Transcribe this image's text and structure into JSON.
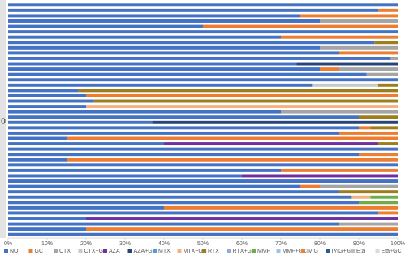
{
  "chart_data": {
    "type": "stacked_bar_horizontal_100",
    "y_label": "0",
    "categories": [
      null,
      null,
      null,
      null,
      null,
      null,
      null,
      null,
      null,
      null,
      null,
      null,
      null,
      null,
      null,
      null,
      null,
      null,
      null,
      null,
      null,
      null,
      null,
      null,
      null,
      null,
      null,
      null,
      null,
      null,
      null,
      null,
      null,
      null,
      null,
      null,
      null,
      null,
      null,
      null,
      null,
      null,
      null,
      null
    ],
    "xlim": [
      0,
      100
    ],
    "xticks": [
      {
        "value": 0,
        "label": "0%"
      },
      {
        "value": 10,
        "label": "10%"
      },
      {
        "value": 20,
        "label": "20%"
      },
      {
        "value": 30,
        "label": "30%"
      },
      {
        "value": 40,
        "label": "40%"
      },
      {
        "value": 50,
        "label": "50%"
      },
      {
        "value": 60,
        "label": "60%"
      },
      {
        "value": 70,
        "label": "70%"
      },
      {
        "value": 80,
        "label": "80%"
      },
      {
        "value": 90,
        "label": "90%"
      },
      {
        "value": 100,
        "label": "100%"
      }
    ],
    "legend": "bottom",
    "series": [
      {
        "name": "NO",
        "color": "#4472c4",
        "values": [
          100,
          95,
          75,
          80,
          50,
          100,
          70,
          94,
          80,
          85,
          98,
          74,
          80,
          92,
          100,
          78,
          18,
          20,
          22,
          20,
          70,
          90,
          37,
          90,
          85,
          15,
          40,
          100,
          90,
          15,
          100,
          70,
          60,
          100,
          75,
          85,
          88,
          90,
          40,
          95,
          20,
          85,
          20,
          100
        ]
      },
      {
        "name": "GC",
        "color": "#ed7d31",
        "values": [
          0,
          5,
          25,
          0,
          50,
          0,
          30,
          0,
          0,
          15,
          0,
          0,
          5,
          0,
          0,
          0,
          0,
          80,
          0,
          0,
          0,
          0,
          0,
          3,
          15,
          85,
          0,
          0,
          10,
          85,
          0,
          30,
          0,
          0,
          5,
          0,
          0,
          0,
          60,
          5,
          0,
          0,
          80,
          0
        ]
      },
      {
        "name": "CTX",
        "color": "#a5a5a5",
        "values": [
          0,
          0,
          0,
          20,
          0,
          0,
          0,
          0,
          20,
          0,
          2,
          0,
          15,
          8,
          0,
          0,
          0,
          0,
          0,
          0,
          30,
          0,
          0,
          0,
          0,
          0,
          0,
          0,
          0,
          0,
          0,
          0,
          0,
          0,
          20,
          0,
          0,
          0,
          0,
          0,
          0,
          15,
          0,
          0
        ]
      },
      {
        "name": "CTX+GC",
        "color": "#c9c9c9",
        "values": [
          0,
          0,
          0,
          0,
          0,
          0,
          0,
          0,
          0,
          0,
          0,
          0,
          0,
          0,
          0,
          17,
          0,
          0,
          0,
          0,
          0,
          0,
          0,
          0,
          0,
          0,
          0,
          0,
          0,
          0,
          0,
          0,
          0,
          0,
          0,
          0,
          0,
          0,
          0,
          0,
          0,
          0,
          0,
          0
        ]
      },
      {
        "name": "AZA",
        "color": "#7030a0",
        "values": [
          0,
          0,
          0,
          0,
          0,
          0,
          0,
          0,
          0,
          0,
          0,
          0,
          0,
          0,
          0,
          0,
          0,
          0,
          0,
          0,
          0,
          0,
          0,
          0,
          0,
          0,
          55,
          0,
          0,
          0,
          0,
          0,
          40,
          0,
          0,
          0,
          0,
          0,
          0,
          0,
          80,
          0,
          0,
          0
        ]
      },
      {
        "name": "AZA+GC",
        "color": "#264478",
        "values": [
          0,
          0,
          0,
          0,
          0,
          0,
          0,
          0,
          0,
          0,
          0,
          26,
          0,
          0,
          0,
          0,
          0,
          0,
          0,
          0,
          0,
          0,
          63,
          0,
          0,
          0,
          0,
          0,
          0,
          0,
          0,
          0,
          0,
          0,
          0,
          0,
          0,
          0,
          0,
          0,
          0,
          0,
          0,
          0
        ]
      },
      {
        "name": "MTX",
        "color": "#5b9bd5",
        "values": [
          0,
          0,
          0,
          0,
          0,
          0,
          0,
          0,
          0,
          0,
          0,
          0,
          0,
          0,
          0,
          0,
          0,
          0,
          0,
          0,
          0,
          0,
          0,
          0,
          0,
          0,
          0,
          0,
          0,
          0,
          0,
          0,
          0,
          0,
          0,
          0,
          0,
          0,
          0,
          0,
          0,
          0,
          0,
          0
        ]
      },
      {
        "name": "MTX+GC",
        "color": "#f4b183",
        "values": [
          0,
          0,
          0,
          0,
          0,
          0,
          0,
          0,
          0,
          0,
          0,
          0,
          0,
          0,
          0,
          0,
          0,
          0,
          0,
          80,
          0,
          0,
          0,
          0,
          0,
          0,
          0,
          0,
          0,
          0,
          0,
          0,
          0,
          0,
          0,
          0,
          5,
          0,
          0,
          0,
          0,
          0,
          0,
          0
        ]
      },
      {
        "name": "RTX",
        "color": "#9e7e1c",
        "values": [
          0,
          0,
          0,
          0,
          0,
          0,
          0,
          6,
          0,
          0,
          0,
          0,
          0,
          0,
          0,
          5,
          82,
          0,
          78,
          0,
          0,
          10,
          0,
          7,
          0,
          0,
          5,
          0,
          0,
          0,
          0,
          0,
          0,
          0,
          0,
          15,
          0,
          0,
          0,
          0,
          0,
          0,
          0,
          0
        ]
      },
      {
        "name": "RTX+GC",
        "color": "#8faadc",
        "values": [
          0,
          0,
          0,
          0,
          0,
          0,
          0,
          0,
          0,
          0,
          0,
          0,
          0,
          0,
          0,
          0,
          0,
          0,
          0,
          0,
          0,
          0,
          0,
          0,
          0,
          0,
          0,
          0,
          0,
          0,
          0,
          0,
          0,
          0,
          0,
          0,
          0,
          0,
          0,
          0,
          0,
          0,
          0,
          0
        ]
      },
      {
        "name": "MMF",
        "color": "#70ad47",
        "values": [
          0,
          0,
          0,
          0,
          0,
          0,
          0,
          0,
          0,
          0,
          0,
          0,
          0,
          0,
          0,
          0,
          0,
          0,
          0,
          0,
          0,
          0,
          0,
          0,
          0,
          0,
          0,
          0,
          0,
          0,
          0,
          0,
          0,
          0,
          0,
          0,
          7,
          10,
          0,
          0,
          0,
          0,
          0,
          0
        ]
      },
      {
        "name": "MMF+GC",
        "color": "#9dc3e6",
        "values": [
          0,
          0,
          0,
          0,
          0,
          0,
          0,
          0,
          0,
          0,
          0,
          0,
          0,
          0,
          0,
          0,
          0,
          0,
          0,
          0,
          0,
          0,
          0,
          0,
          0,
          0,
          0,
          0,
          0,
          0,
          0,
          0,
          0,
          0,
          0,
          0,
          0,
          0,
          0,
          0,
          0,
          0,
          0,
          0
        ]
      },
      {
        "name": "IVIG",
        "color": "#f08030",
        "values": [
          0,
          0,
          0,
          0,
          0,
          0,
          0,
          0,
          0,
          0,
          0,
          0,
          0,
          0,
          0,
          0,
          0,
          0,
          0,
          0,
          0,
          0,
          0,
          0,
          0,
          0,
          0,
          0,
          0,
          0,
          0,
          0,
          0,
          0,
          0,
          0,
          0,
          0,
          0,
          0,
          0,
          0,
          0,
          0
        ]
      },
      {
        "name": "IVIG+GC",
        "color": "#255e91",
        "values": [
          0,
          0,
          0,
          0,
          0,
          0,
          0,
          0,
          0,
          0,
          0,
          0,
          0,
          0,
          0,
          0,
          0,
          0,
          0,
          0,
          0,
          0,
          0,
          0,
          0,
          0,
          0,
          0,
          0,
          0,
          0,
          0,
          0,
          0,
          0,
          0,
          0,
          0,
          0,
          0,
          0,
          0,
          0,
          0
        ]
      },
      {
        "name": "Eta",
        "color": "#bfbfbf",
        "values": [
          0,
          0,
          0,
          0,
          0,
          0,
          0,
          0,
          0,
          0,
          0,
          0,
          0,
          0,
          0,
          0,
          0,
          0,
          0,
          0,
          0,
          0,
          0,
          0,
          0,
          0,
          0,
          0,
          0,
          0,
          0,
          0,
          0,
          0,
          0,
          0,
          0,
          0,
          0,
          0,
          0,
          0,
          0,
          0
        ]
      },
      {
        "name": "Eta+GC",
        "color": "#d6dce5",
        "values": [
          0,
          0,
          0,
          0,
          0,
          0,
          0,
          0,
          0,
          0,
          0,
          0,
          0,
          0,
          0,
          0,
          0,
          0,
          0,
          0,
          0,
          0,
          0,
          0,
          0,
          0,
          0,
          0,
          0,
          0,
          0,
          0,
          0,
          0,
          0,
          0,
          0,
          0,
          0,
          0,
          0,
          0,
          0,
          0
        ]
      }
    ]
  }
}
